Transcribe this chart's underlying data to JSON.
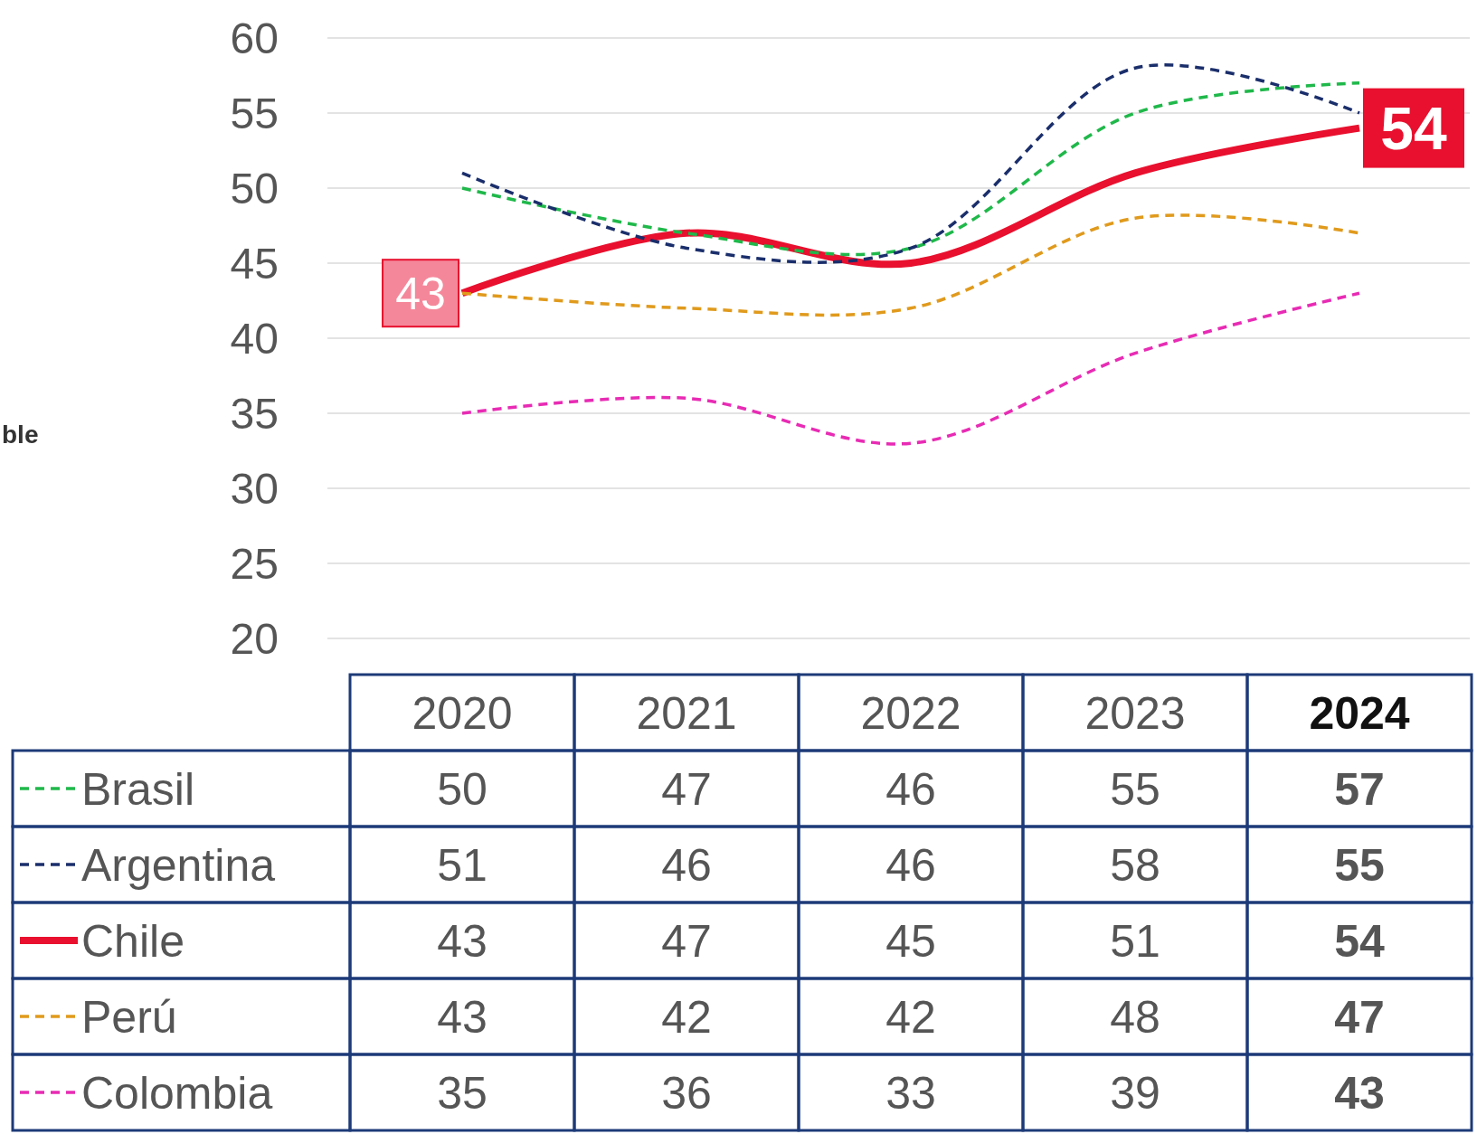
{
  "chart_data": {
    "type": "line",
    "categories": [
      "2020",
      "2021",
      "2022",
      "2023",
      "2024"
    ],
    "series": [
      {
        "name": "Brasil",
        "color": "#1fb84a",
        "line_style": "dashed",
        "values": [
          50,
          47,
          46,
          55,
          57
        ]
      },
      {
        "name": "Argentina",
        "color": "#1a2e6b",
        "line_style": "dashed",
        "values": [
          51,
          46,
          46,
          58,
          55
        ]
      },
      {
        "name": "Chile",
        "color": "#e8102e",
        "line_style": "solid",
        "values": [
          43,
          47,
          45,
          51,
          54
        ]
      },
      {
        "name": "Perú",
        "color": "#e09a1c",
        "line_style": "dashed",
        "values": [
          43,
          42,
          42,
          48,
          47
        ]
      },
      {
        "name": "Colombia",
        "color": "#e82bb4",
        "line_style": "dashed",
        "values": [
          35,
          36,
          33,
          39,
          43
        ]
      }
    ],
    "ylim": [
      20,
      60
    ],
    "yticks": [
      20,
      25,
      30,
      35,
      40,
      45,
      50,
      55,
      60
    ],
    "grid": "y",
    "data_labels": true,
    "legend": "bottom",
    "annotations": [
      "ble",
      {
        "text": "43",
        "x": "2020",
        "y": 43
      },
      {
        "text": "54",
        "x": "2024",
        "y": 54
      }
    ]
  }
}
